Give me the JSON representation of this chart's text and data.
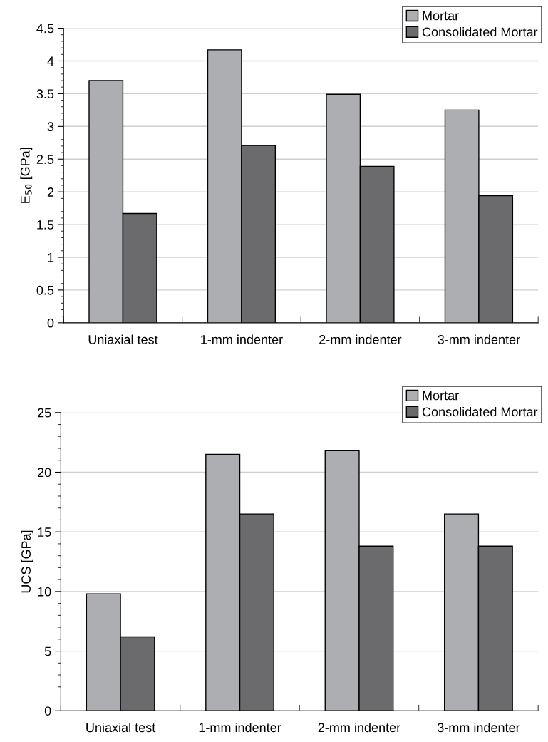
{
  "chart_data": [
    {
      "type": "bar",
      "ylabel": "E$_{50}$ [GPa]",
      "categories": [
        "Uniaxial test",
        "1-mm indenter",
        "2-mm indenter",
        "3-mm indenter"
      ],
      "series": [
        {
          "name": "Mortar",
          "color": "#adaeb2",
          "values": [
            3.7,
            4.17,
            3.49,
            3.25
          ]
        },
        {
          "name": "Consolidated Mortar",
          "color": "#6b6b6d",
          "values": [
            1.67,
            2.71,
            2.39,
            1.94
          ]
        }
      ],
      "ylim": [
        0,
        4.5
      ],
      "yticks": [
        0,
        0.5,
        1,
        1.5,
        2,
        2.5,
        3,
        3.5,
        4,
        4.5
      ],
      "grid": "y",
      "legend": "top right"
    },
    {
      "type": "bar",
      "ylabel": "UCS [GPa]",
      "categories": [
        "Uniaxial test",
        "1-mm indenter",
        "2-mm indenter",
        "3-mm indenter"
      ],
      "series": [
        {
          "name": "Mortar",
          "color": "#adaeb2",
          "values": [
            9.8,
            21.5,
            21.8,
            16.5
          ]
        },
        {
          "name": "Consolidated Mortar",
          "color": "#6b6b6d",
          "values": [
            6.2,
            16.5,
            13.8,
            13.8
          ]
        }
      ],
      "ylim": [
        0,
        25
      ],
      "yticks": [
        0,
        5,
        10,
        15,
        20,
        25
      ],
      "grid": "y",
      "legend": "top right"
    }
  ]
}
